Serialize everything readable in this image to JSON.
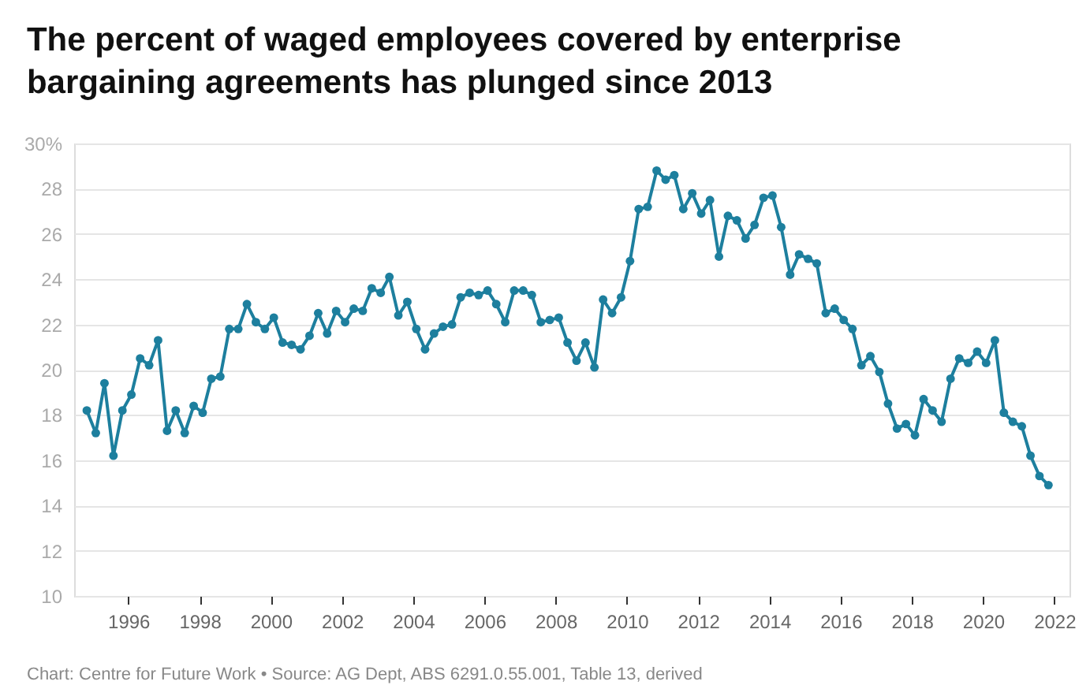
{
  "chart_data": {
    "type": "line",
    "title": "The percent of waged employees covered by enterprise bargaining agreements has plunged since 2013",
    "annotations": [
      "Chart: Centre for Future Work • Source: AG Dept, ABS 6291.0.55.001, Table 13, derived"
    ],
    "x": [
      "1994-11",
      "1995-02",
      "1995-05",
      "1995-08",
      "1995-11",
      "1996-02",
      "1996-05",
      "1996-08",
      "1996-11",
      "1997-02",
      "1997-05",
      "1997-08",
      "1997-11",
      "1998-02",
      "1998-05",
      "1998-08",
      "1998-11",
      "1999-02",
      "1999-05",
      "1999-08",
      "1999-11",
      "2000-02",
      "2000-05",
      "2000-08",
      "2000-11",
      "2001-02",
      "2001-05",
      "2001-08",
      "2001-11",
      "2002-02",
      "2002-05",
      "2002-08",
      "2002-11",
      "2003-02",
      "2003-05",
      "2003-08",
      "2003-11",
      "2004-02",
      "2004-05",
      "2004-08",
      "2004-11",
      "2005-02",
      "2005-05",
      "2005-08",
      "2005-11",
      "2006-02",
      "2006-05",
      "2006-08",
      "2006-11",
      "2007-02",
      "2007-05",
      "2007-08",
      "2007-11",
      "2008-02",
      "2008-05",
      "2008-08",
      "2008-11",
      "2009-02",
      "2009-05",
      "2009-08",
      "2009-11",
      "2010-02",
      "2010-05",
      "2010-08",
      "2010-11",
      "2011-02",
      "2011-05",
      "2011-08",
      "2011-11",
      "2012-02",
      "2012-05",
      "2012-08",
      "2012-11",
      "2013-02",
      "2013-05",
      "2013-08",
      "2013-11",
      "2014-02",
      "2014-05",
      "2014-08",
      "2014-11",
      "2015-02",
      "2015-05",
      "2015-08",
      "2015-11",
      "2016-02",
      "2016-05",
      "2016-08",
      "2016-11",
      "2017-02",
      "2017-05",
      "2017-08",
      "2017-11",
      "2018-02",
      "2018-05",
      "2018-08",
      "2018-11",
      "2019-02",
      "2019-05",
      "2019-08",
      "2019-11",
      "2020-02",
      "2020-05",
      "2020-08",
      "2020-11",
      "2021-02",
      "2021-05",
      "2021-08",
      "2021-11"
    ],
    "series": [
      {
        "color": "#1d7f9e",
        "values": [
          18.2,
          17.2,
          19.4,
          16.2,
          18.2,
          18.9,
          20.5,
          20.2,
          21.3,
          17.3,
          18.2,
          17.2,
          18.4,
          18.1,
          19.6,
          19.7,
          21.8,
          21.8,
          22.9,
          22.1,
          21.8,
          22.3,
          21.2,
          21.1,
          20.9,
          21.5,
          22.5,
          21.6,
          22.6,
          22.1,
          22.7,
          22.6,
          23.6,
          23.4,
          24.1,
          22.4,
          23.0,
          21.8,
          20.9,
          21.6,
          21.9,
          22.0,
          23.2,
          23.4,
          23.3,
          23.5,
          22.9,
          22.1,
          23.5,
          23.5,
          23.3,
          22.1,
          22.2,
          22.3,
          21.2,
          20.4,
          21.2,
          20.1,
          23.1,
          22.5,
          23.2,
          24.8,
          27.1,
          27.2,
          28.8,
          28.4,
          28.6,
          27.1,
          27.8,
          26.9,
          27.5,
          25.0,
          26.8,
          26.6,
          25.8,
          26.4,
          27.6,
          27.7,
          26.3,
          24.2,
          25.1,
          24.9,
          24.7,
          22.5,
          22.7,
          22.2,
          21.8,
          20.2,
          20.6,
          19.9,
          18.5,
          17.4,
          17.6,
          17.1,
          18.7,
          18.2,
          17.7,
          19.6,
          20.5,
          20.3,
          20.8,
          20.3,
          21.3,
          18.1,
          17.7,
          17.5,
          16.2,
          15.3,
          14.9
        ]
      }
    ],
    "xlim": [
      "1994-06-24",
      "2022-06-05"
    ],
    "xticks": [
      "1996",
      "1998",
      "2000",
      "2002",
      "2004",
      "2006",
      "2008",
      "2010",
      "2012",
      "2014",
      "2016",
      "2018",
      "2020",
      "2022"
    ],
    "ylim": [
      10,
      30
    ],
    "yticks": [
      10,
      12,
      14,
      16,
      18,
      20,
      22,
      24,
      26,
      28,
      {
        "value": 30,
        "label": "30%"
      }
    ],
    "grid": "y",
    "marker": "circle",
    "line_style": "solid"
  }
}
